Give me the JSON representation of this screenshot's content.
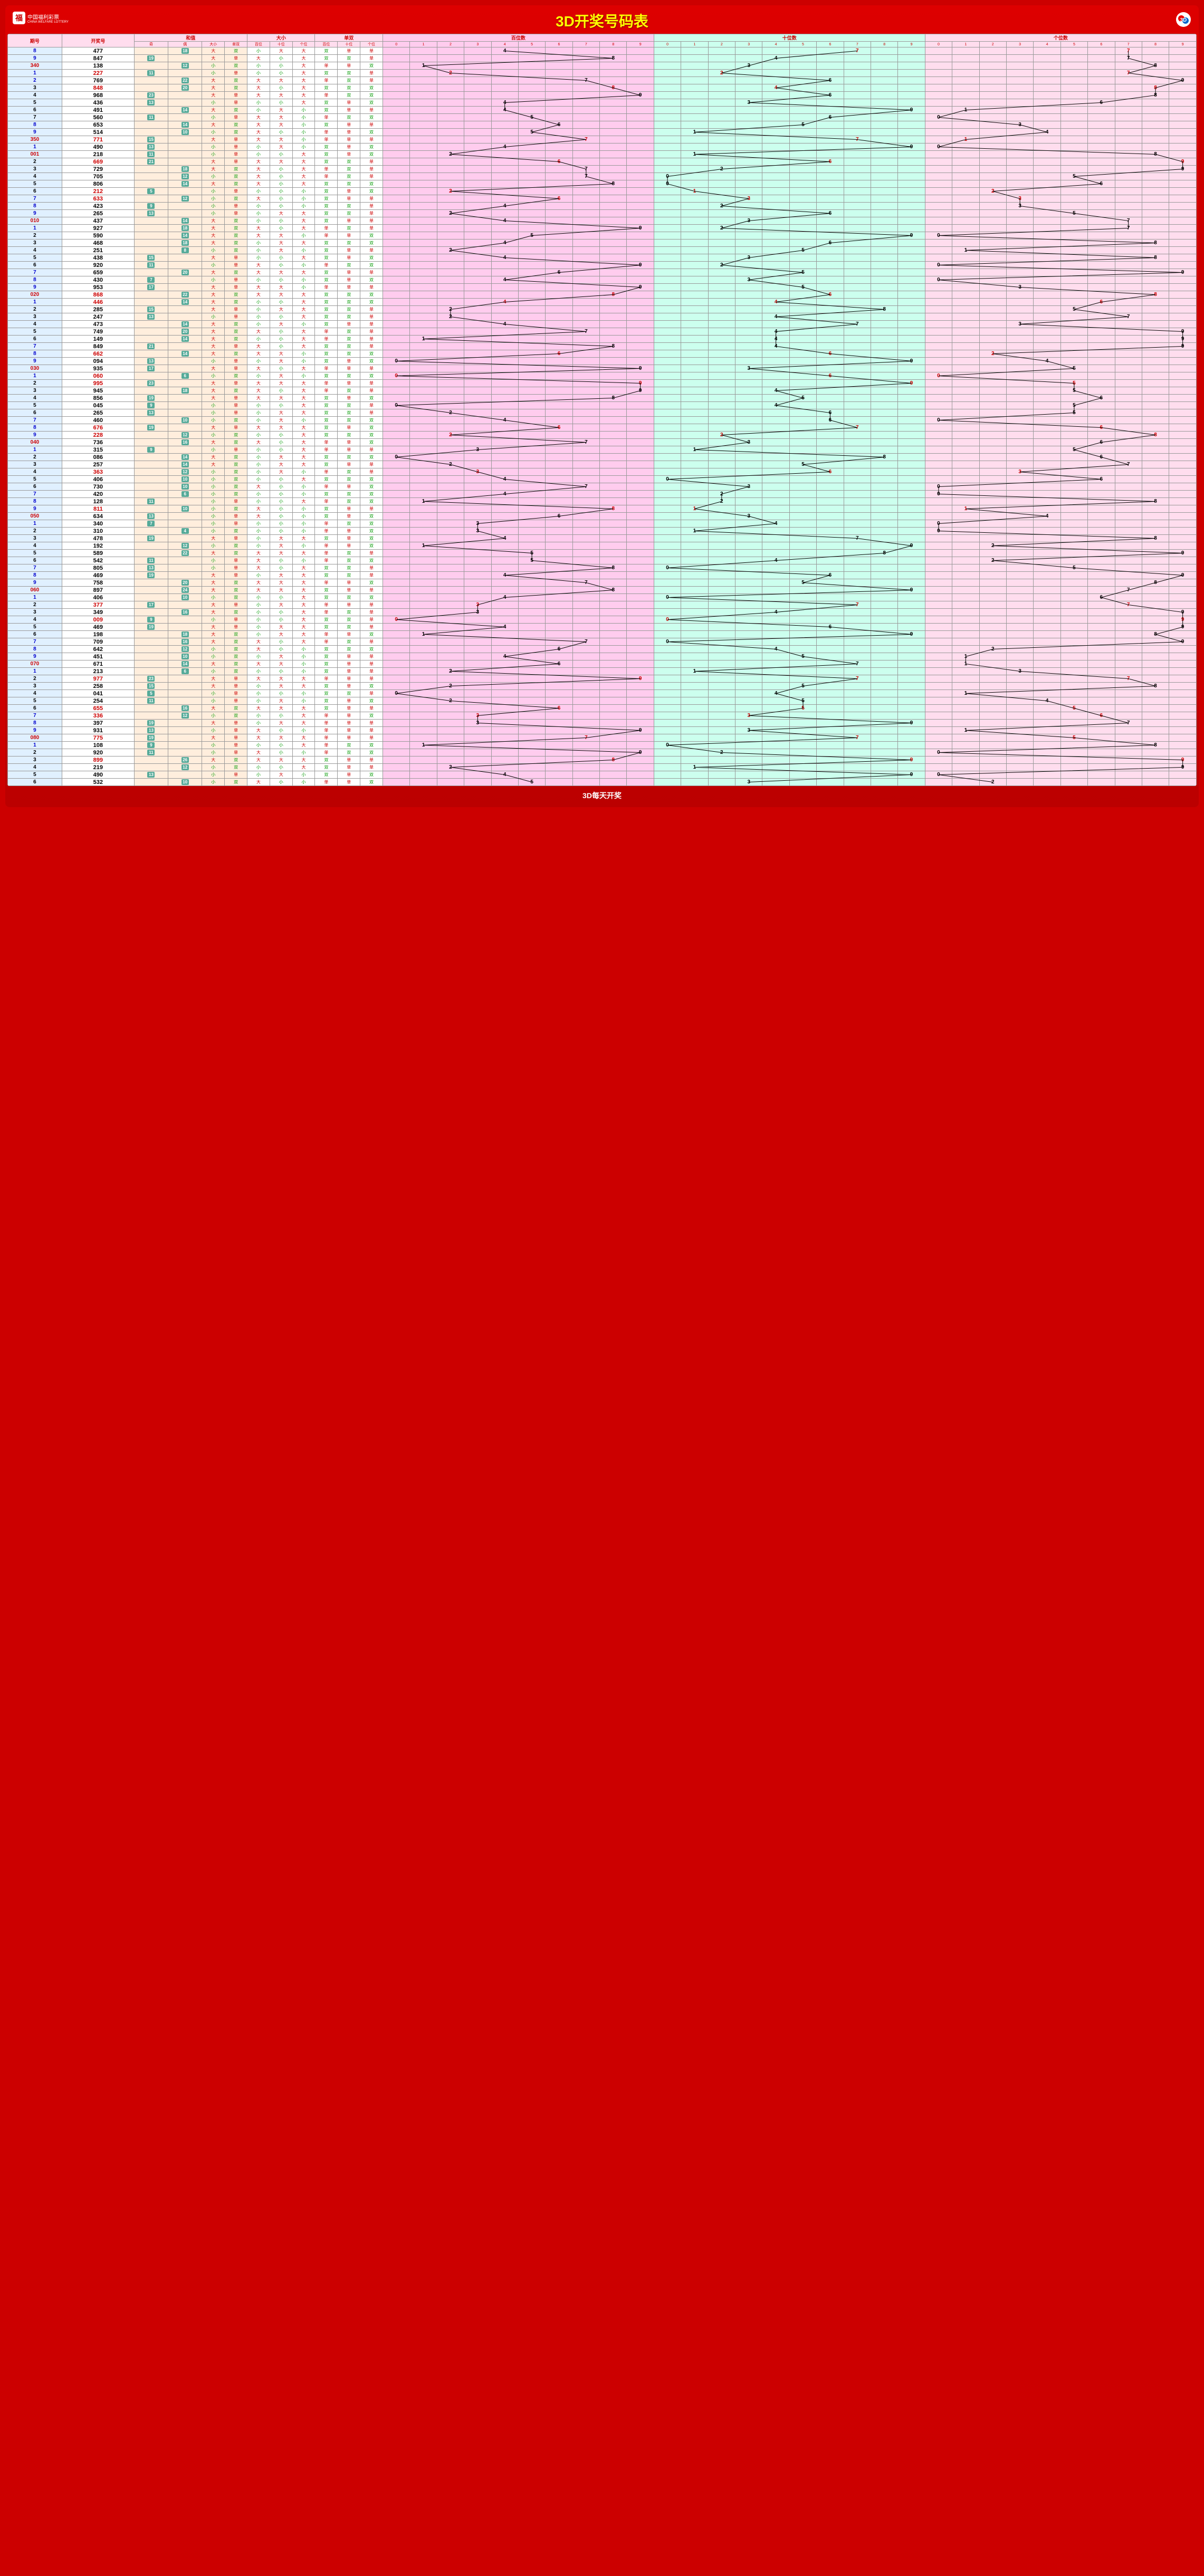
{
  "title": "3D开奖号码表",
  "logo_text": "中国福利彩票",
  "logo_sub": "CHINA WELFARE LOTTERY",
  "footer": "3D每天开奖",
  "headers": {
    "period": "期号",
    "draw": "开奖号",
    "hezhi": "和值",
    "hezhi_sub": [
      "奇",
      "偶",
      "大小",
      "单双"
    ],
    "daxiao": "大小",
    "daxiao_sub": [
      "百位",
      "十位",
      "个位"
    ],
    "danshuang": "单双",
    "danshuang_sub": [
      "百位",
      "十位",
      "个位"
    ],
    "bai": "百位数",
    "shi": "十位数",
    "ge": "个位数",
    "digits": [
      "0",
      "1",
      "2",
      "3",
      "4",
      "5",
      "6",
      "7",
      "8",
      "9"
    ]
  },
  "colors": {
    "frame": "#c00000",
    "title": "#ffff00",
    "period_bg": "#e0f0ff",
    "odd_bg": "#ffeecc",
    "chip_bg": "#55aa99",
    "trend1_bg": "#ffccee",
    "trend2_bg": "#ccffee",
    "trend3_bg": "#ffddee",
    "da": "#cc0000",
    "xiao": "#009900",
    "line": "#000000"
  },
  "size_chars": {
    "big": "大",
    "small": "小"
  },
  "oe_chars": {
    "odd": "单",
    "even": "双"
  },
  "rows": [
    {
      "p": "8",
      "d": "477",
      "pr": false
    },
    {
      "p": "9",
      "d": "847",
      "pr": false
    },
    {
      "p": "340",
      "d": "138",
      "pr": true
    },
    {
      "p": "1",
      "d": "227",
      "pr": false,
      "dr": true
    },
    {
      "p": "2",
      "d": "769",
      "pr": false
    },
    {
      "p": "3",
      "d": "848",
      "pr": false,
      "dr": true
    },
    {
      "p": "4",
      "d": "968",
      "pr": false
    },
    {
      "p": "5",
      "d": "436",
      "pr": false
    },
    {
      "p": "6",
      "d": "491",
      "pr": false
    },
    {
      "p": "7",
      "d": "560",
      "pr": false
    },
    {
      "p": "8",
      "d": "653",
      "pr": false
    },
    {
      "p": "9",
      "d": "514",
      "pr": false
    },
    {
      "p": "350",
      "d": "771",
      "pr": true,
      "dr": true
    },
    {
      "p": "1",
      "d": "490",
      "pr": false
    },
    {
      "p": "001",
      "d": "218",
      "pr": true
    },
    {
      "p": "2",
      "d": "669",
      "pr": false,
      "dr": true
    },
    {
      "p": "3",
      "d": "729",
      "pr": false
    },
    {
      "p": "4",
      "d": "705",
      "pr": false
    },
    {
      "p": "5",
      "d": "806",
      "pr": false
    },
    {
      "p": "6",
      "d": "212",
      "pr": false,
      "dr": true
    },
    {
      "p": "7",
      "d": "633",
      "pr": false,
      "dr": true
    },
    {
      "p": "8",
      "d": "423",
      "pr": false
    },
    {
      "p": "9",
      "d": "265",
      "pr": false
    },
    {
      "p": "010",
      "d": "437",
      "pr": true
    },
    {
      "p": "1",
      "d": "927",
      "pr": false
    },
    {
      "p": "2",
      "d": "590",
      "pr": false
    },
    {
      "p": "3",
      "d": "468",
      "pr": false
    },
    {
      "p": "4",
      "d": "251",
      "pr": false
    },
    {
      "p": "5",
      "d": "438",
      "pr": false
    },
    {
      "p": "6",
      "d": "920",
      "pr": false
    },
    {
      "p": "7",
      "d": "659",
      "pr": false
    },
    {
      "p": "8",
      "d": "430",
      "pr": false
    },
    {
      "p": "9",
      "d": "953",
      "pr": false
    },
    {
      "p": "020",
      "d": "868",
      "pr": true,
      "dr": true
    },
    {
      "p": "1",
      "d": "446",
      "pr": false,
      "dr": true
    },
    {
      "p": "2",
      "d": "285",
      "pr": false
    },
    {
      "p": "3",
      "d": "247",
      "pr": false
    },
    {
      "p": "4",
      "d": "473",
      "pr": false
    },
    {
      "p": "5",
      "d": "749",
      "pr": false
    },
    {
      "p": "6",
      "d": "149",
      "pr": false
    },
    {
      "p": "7",
      "d": "849",
      "pr": false
    },
    {
      "p": "8",
      "d": "662",
      "pr": false,
      "dr": true
    },
    {
      "p": "9",
      "d": "094",
      "pr": false
    },
    {
      "p": "030",
      "d": "935",
      "pr": true
    },
    {
      "p": "1",
      "d": "060",
      "pr": false,
      "dr": true
    },
    {
      "p": "2",
      "d": "995",
      "pr": false,
      "dr": true
    },
    {
      "p": "3",
      "d": "945",
      "pr": false
    },
    {
      "p": "4",
      "d": "856",
      "pr": false
    },
    {
      "p": "5",
      "d": "045",
      "pr": false
    },
    {
      "p": "6",
      "d": "265",
      "pr": false
    },
    {
      "p": "7",
      "d": "460",
      "pr": false
    },
    {
      "p": "8",
      "d": "676",
      "pr": false,
      "dr": true
    },
    {
      "p": "9",
      "d": "228",
      "pr": false,
      "dr": true
    },
    {
      "p": "040",
      "d": "736",
      "pr": true
    },
    {
      "p": "1",
      "d": "315",
      "pr": false
    },
    {
      "p": "2",
      "d": "086",
      "pr": false
    },
    {
      "p": "3",
      "d": "257",
      "pr": false
    },
    {
      "p": "4",
      "d": "363",
      "pr": false,
      "dr": true
    },
    {
      "p": "5",
      "d": "406",
      "pr": false
    },
    {
      "p": "6",
      "d": "730",
      "pr": false
    },
    {
      "p": "7",
      "d": "420",
      "pr": false
    },
    {
      "p": "8",
      "d": "128",
      "pr": false
    },
    {
      "p": "9",
      "d": "811",
      "pr": false,
      "dr": true
    },
    {
      "p": "050",
      "d": "634",
      "pr": true
    },
    {
      "p": "1",
      "d": "340",
      "pr": false
    },
    {
      "p": "2",
      "d": "310",
      "pr": false
    },
    {
      "p": "3",
      "d": "478",
      "pr": false
    },
    {
      "p": "4",
      "d": "192",
      "pr": false
    },
    {
      "p": "5",
      "d": "589",
      "pr": false
    },
    {
      "p": "6",
      "d": "542",
      "pr": false
    },
    {
      "p": "7",
      "d": "805",
      "pr": false
    },
    {
      "p": "8",
      "d": "469",
      "pr": false
    },
    {
      "p": "9",
      "d": "758",
      "pr": false
    },
    {
      "p": "060",
      "d": "897",
      "pr": true
    },
    {
      "p": "1",
      "d": "406",
      "pr": false
    },
    {
      "p": "2",
      "d": "377",
      "pr": false,
      "dr": true
    },
    {
      "p": "3",
      "d": "349",
      "pr": false
    },
    {
      "p": "4",
      "d": "009",
      "pr": false,
      "dr": true
    },
    {
      "p": "5",
      "d": "469",
      "pr": false
    },
    {
      "p": "6",
      "d": "198",
      "pr": false
    },
    {
      "p": "7",
      "d": "709",
      "pr": false
    },
    {
      "p": "8",
      "d": "642",
      "pr": false
    },
    {
      "p": "9",
      "d": "451",
      "pr": false
    },
    {
      "p": "070",
      "d": "671",
      "pr": true
    },
    {
      "p": "1",
      "d": "213",
      "pr": false
    },
    {
      "p": "2",
      "d": "977",
      "pr": false,
      "dr": true
    },
    {
      "p": "3",
      "d": "258",
      "pr": false
    },
    {
      "p": "4",
      "d": "041",
      "pr": false
    },
    {
      "p": "5",
      "d": "254",
      "pr": false
    },
    {
      "p": "6",
      "d": "655",
      "pr": false,
      "dr": true
    },
    {
      "p": "7",
      "d": "336",
      "pr": false,
      "dr": true
    },
    {
      "p": "8",
      "d": "397",
      "pr": false
    },
    {
      "p": "9",
      "d": "931",
      "pr": false
    },
    {
      "p": "080",
      "d": "775",
      "pr": true,
      "dr": true
    },
    {
      "p": "1",
      "d": "108",
      "pr": false
    },
    {
      "p": "2",
      "d": "920",
      "pr": false
    },
    {
      "p": "3",
      "d": "899",
      "pr": false,
      "dr": true
    },
    {
      "p": "4",
      "d": "219",
      "pr": false
    },
    {
      "p": "5",
      "d": "490",
      "pr": false
    },
    {
      "p": "6",
      "d": "532",
      "pr": false
    }
  ]
}
